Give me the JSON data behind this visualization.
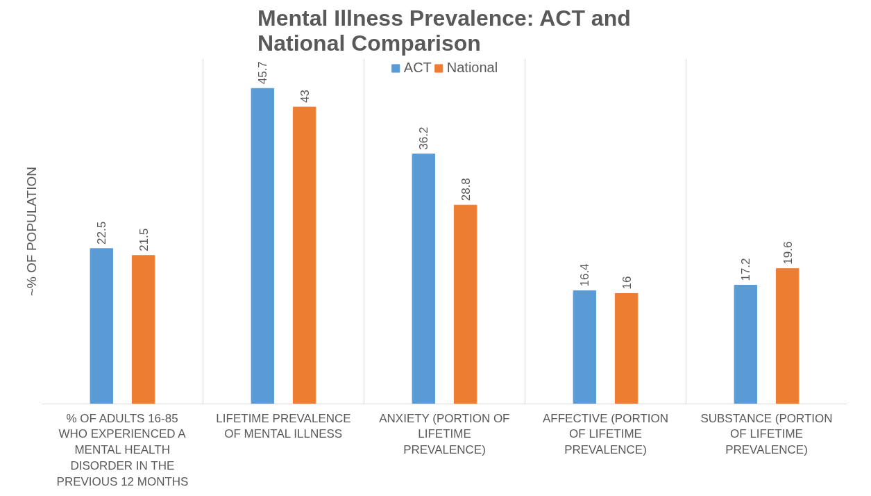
{
  "chart_data": {
    "type": "bar",
    "title": "Mental Illness Prevalence: ACT and National Comparison",
    "ylabel": "~% OF POPULATION",
    "categories": [
      "% OF ADULTS 16-85 WHO EXPERIENCED A MENTAL HEALTH DISORDER IN THE PREVIOUS 12 MONTHS",
      "LIFETIME PREVALENCE OF MENTAL ILLNESS",
      "ANXIETY (PORTION OF LIFETIME PREVALENCE)",
      "AFFECTIVE (PORTION OF LIFETIME PREVALENCE)",
      "SUBSTANCE (PORTION OF LIFETIME PREVALENCE)"
    ],
    "series": [
      {
        "name": "ACT",
        "color": "#5b9bd5",
        "values": [
          22.5,
          45.7,
          36.2,
          16.4,
          17.2
        ]
      },
      {
        "name": "National",
        "color": "#ed7d31",
        "values": [
          21.5,
          43,
          28.8,
          16,
          19.6
        ]
      }
    ],
    "ylim": [
      0,
      50
    ],
    "data_labels": true,
    "grid": "x",
    "legend": "top",
    "tick_labels": "x"
  }
}
